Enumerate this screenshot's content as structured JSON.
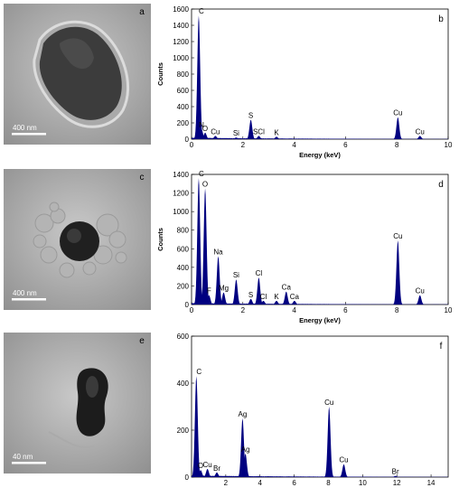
{
  "panels": [
    {
      "label": "a",
      "scale_bar": "400 nm",
      "style": "teardrop"
    },
    {
      "label": "c",
      "scale_bar": "400 nm",
      "style": "cluster"
    },
    {
      "label": "e",
      "scale_bar": "40 nm",
      "style": "bean"
    }
  ],
  "chart_data": [
    {
      "type": "bar",
      "label": "b",
      "xlabel": "Energy (keV)",
      "ylabel": "Counts",
      "xlim": [
        0,
        10
      ],
      "ylim": [
        0,
        1600
      ],
      "xticks": [
        0,
        2,
        4,
        6,
        8,
        10
      ],
      "yticks": [
        0,
        200,
        400,
        600,
        800,
        1000,
        1200,
        1400,
        1600
      ],
      "peaks": [
        {
          "x": 0.28,
          "y": 1520,
          "label": "C"
        },
        {
          "x": 0.39,
          "y": 120,
          "label": "N"
        },
        {
          "x": 0.53,
          "y": 80,
          "label": "O"
        },
        {
          "x": 0.93,
          "y": 40,
          "label": "Cu"
        },
        {
          "x": 1.74,
          "y": 20,
          "label": "Si"
        },
        {
          "x": 2.31,
          "y": 240,
          "label": "S"
        },
        {
          "x": 2.62,
          "y": 40,
          "label": "SCl"
        },
        {
          "x": 3.31,
          "y": 30,
          "label": "K"
        },
        {
          "x": 8.04,
          "y": 270,
          "label": "Cu"
        },
        {
          "x": 8.9,
          "y": 40,
          "label": "Cu"
        }
      ]
    },
    {
      "type": "bar",
      "label": "d",
      "xlabel": "Energy (keV)",
      "ylabel": "Counts",
      "xlim": [
        0,
        10
      ],
      "ylim": [
        0,
        1400
      ],
      "xticks": [
        0,
        2,
        4,
        6,
        8,
        10
      ],
      "yticks": [
        0,
        200,
        400,
        600,
        800,
        1000,
        1200,
        1400
      ],
      "peaks": [
        {
          "x": 0.28,
          "y": 1360,
          "label": "C"
        },
        {
          "x": 0.53,
          "y": 1250,
          "label": "O"
        },
        {
          "x": 0.68,
          "y": 100,
          "label": "F"
        },
        {
          "x": 1.04,
          "y": 520,
          "label": "Na"
        },
        {
          "x": 1.25,
          "y": 130,
          "label": "Mg"
        },
        {
          "x": 1.74,
          "y": 270,
          "label": "Si"
        },
        {
          "x": 2.31,
          "y": 60,
          "label": "S"
        },
        {
          "x": 2.62,
          "y": 290,
          "label": "Cl"
        },
        {
          "x": 2.8,
          "y": 40,
          "label": "Cl"
        },
        {
          "x": 3.31,
          "y": 40,
          "label": "K"
        },
        {
          "x": 3.69,
          "y": 140,
          "label": "Ca"
        },
        {
          "x": 4.01,
          "y": 40,
          "label": "Ca"
        },
        {
          "x": 8.04,
          "y": 690,
          "label": "Cu"
        },
        {
          "x": 8.9,
          "y": 100,
          "label": "Cu"
        }
      ]
    },
    {
      "type": "bar",
      "label": "f",
      "xlabel": "",
      "ylabel": "",
      "xlim": [
        0,
        15
      ],
      "ylim": [
        0,
        600
      ],
      "xticks": [
        2,
        4,
        6,
        8,
        10,
        12,
        14
      ],
      "yticks": [
        0,
        200,
        400,
        600
      ],
      "peaks": [
        {
          "x": 0.28,
          "y": 430,
          "label": "C"
        },
        {
          "x": 0.53,
          "y": 30,
          "label": "O"
        },
        {
          "x": 0.93,
          "y": 35,
          "label": "Cu"
        },
        {
          "x": 1.48,
          "y": 20,
          "label": "Br"
        },
        {
          "x": 2.98,
          "y": 250,
          "label": "Ag"
        },
        {
          "x": 3.15,
          "y": 100,
          "label": "Ag"
        },
        {
          "x": 8.04,
          "y": 300,
          "label": "Cu"
        },
        {
          "x": 8.9,
          "y": 55,
          "label": "Cu"
        },
        {
          "x": 11.92,
          "y": 5,
          "label": "Br"
        }
      ]
    }
  ]
}
